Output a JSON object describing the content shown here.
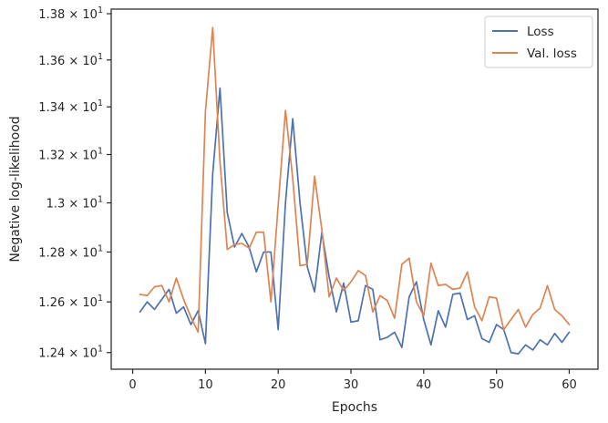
{
  "chart_data": {
    "type": "line",
    "title": "",
    "xlabel": "Epochs",
    "ylabel": "Negative log-likelihood",
    "yscale": "log",
    "xlim": [
      -2.95,
      63.95
    ],
    "ylim": [
      12.335,
      13.82
    ],
    "grid": false,
    "legend_position": "top-right",
    "x_ticks": [
      {
        "value": 0,
        "label": "0"
      },
      {
        "value": 10,
        "label": "10"
      },
      {
        "value": 20,
        "label": "20"
      },
      {
        "value": 30,
        "label": "30"
      },
      {
        "value": 40,
        "label": "40"
      },
      {
        "value": 50,
        "label": "50"
      },
      {
        "value": 60,
        "label": "60"
      }
    ],
    "y_ticks": [
      {
        "value": 12.4,
        "mantissa": "1.24",
        "base": "10",
        "exponent": "1"
      },
      {
        "value": 12.6,
        "mantissa": "1.26",
        "base": "10",
        "exponent": "1"
      },
      {
        "value": 12.8,
        "mantissa": "1.28",
        "base": "10",
        "exponent": "1"
      },
      {
        "value": 13.0,
        "mantissa": "1.3",
        "base": "10",
        "exponent": "1"
      },
      {
        "value": 13.2,
        "mantissa": "1.32",
        "base": "10",
        "exponent": "1"
      },
      {
        "value": 13.4,
        "mantissa": "1.34",
        "base": "10",
        "exponent": "1"
      },
      {
        "value": 13.6,
        "mantissa": "1.36",
        "base": "10",
        "exponent": "1"
      },
      {
        "value": 13.8,
        "mantissa": "1.38",
        "base": "10",
        "exponent": "1"
      }
    ],
    "x": [
      1,
      2,
      3,
      4,
      5,
      6,
      7,
      8,
      9,
      10,
      11,
      12,
      13,
      14,
      15,
      16,
      17,
      18,
      19,
      20,
      21,
      22,
      23,
      24,
      25,
      26,
      27,
      28,
      29,
      30,
      31,
      32,
      33,
      34,
      35,
      36,
      37,
      38,
      39,
      40,
      41,
      42,
      43,
      44,
      45,
      46,
      47,
      48,
      49,
      50,
      51,
      52,
      53,
      54,
      55,
      56,
      57,
      58,
      59,
      60
    ],
    "series": [
      {
        "name": "Loss",
        "color": "#4c72b0",
        "values": [
          12.56,
          12.6,
          12.57,
          12.61,
          12.65,
          12.555,
          12.58,
          12.51,
          12.565,
          12.435,
          13.12,
          13.48,
          12.96,
          12.82,
          12.875,
          12.82,
          12.72,
          12.8,
          12.8,
          12.49,
          13.0,
          13.35,
          13.0,
          12.74,
          12.64,
          12.88,
          12.7,
          12.56,
          12.675,
          12.52,
          12.525,
          12.665,
          12.65,
          12.45,
          12.46,
          12.48,
          12.42,
          12.62,
          12.68,
          12.53,
          12.43,
          12.565,
          12.5,
          12.63,
          12.635,
          12.53,
          12.545,
          12.455,
          12.44,
          12.51,
          12.49,
          12.4,
          12.395,
          12.43,
          12.41,
          12.45,
          12.43,
          12.475,
          12.44,
          12.48
        ]
      },
      {
        "name": "Val. loss",
        "color": "#dd8452",
        "values": [
          12.63,
          12.625,
          12.66,
          12.665,
          12.6,
          12.695,
          12.61,
          12.54,
          12.48,
          13.38,
          13.74,
          13.17,
          12.81,
          12.83,
          12.835,
          12.815,
          12.88,
          12.88,
          12.6,
          12.99,
          13.385,
          13.1,
          12.745,
          12.75,
          13.11,
          12.89,
          12.62,
          12.695,
          12.645,
          12.68,
          12.725,
          12.705,
          12.56,
          12.625,
          12.605,
          12.535,
          12.75,
          12.775,
          12.6,
          12.545,
          12.755,
          12.665,
          12.67,
          12.65,
          12.655,
          12.72,
          12.58,
          12.525,
          12.62,
          12.615,
          12.49,
          12.53,
          12.57,
          12.5,
          12.55,
          12.575,
          12.665,
          12.57,
          12.545,
          12.51
        ]
      }
    ]
  }
}
